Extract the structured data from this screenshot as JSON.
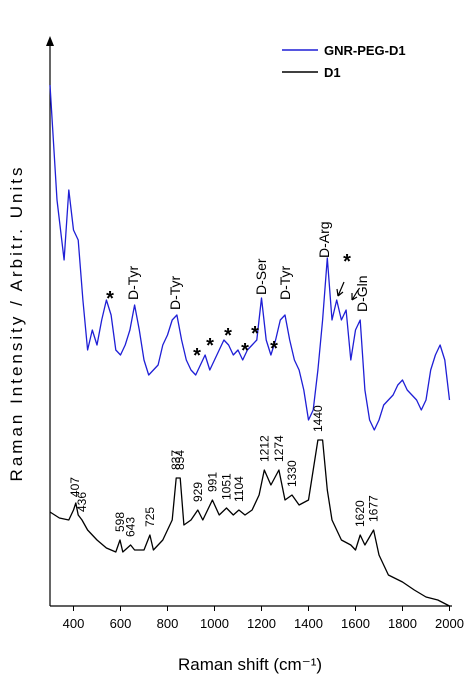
{
  "chart_data": {
    "type": "line",
    "xlabel": "Raman shift (cm⁻¹)",
    "ylabel": "Raman Intensity / Arbitr. Units",
    "xlim": [
      300,
      2000
    ],
    "ylim": [
      0,
      566
    ],
    "xticks": [
      400,
      600,
      800,
      1000,
      1200,
      1400,
      1600,
      1800,
      2000
    ],
    "series": [
      {
        "name": "GNR-PEG-D1",
        "color": "#1f1fd6",
        "x": [
          300,
          330,
          360,
          380,
          400,
          420,
          440,
          460,
          480,
          500,
          520,
          540,
          560,
          580,
          600,
          620,
          640,
          660,
          680,
          700,
          720,
          740,
          760,
          780,
          800,
          820,
          840,
          860,
          880,
          900,
          920,
          940,
          960,
          980,
          1000,
          1020,
          1040,
          1060,
          1080,
          1100,
          1120,
          1140,
          1160,
          1180,
          1200,
          1220,
          1240,
          1260,
          1280,
          1300,
          1320,
          1340,
          1360,
          1380,
          1400,
          1420,
          1440,
          1460,
          1480,
          1500,
          1520,
          1540,
          1560,
          1580,
          1600,
          1620,
          1640,
          1660,
          1680,
          1700,
          1720,
          1740,
          1760,
          1780,
          1800,
          1820,
          1840,
          1860,
          1880,
          1900,
          1920,
          1940,
          1960,
          1980,
          2000
        ],
        "values": [
          521,
          406,
          346,
          416,
          376,
          366,
          306,
          256,
          276,
          261,
          286,
          306,
          291,
          256,
          251,
          261,
          276,
          301,
          276,
          246,
          231,
          236,
          241,
          261,
          271,
          286,
          291,
          266,
          246,
          236,
          231,
          241,
          251,
          236,
          246,
          256,
          266,
          261,
          251,
          256,
          246,
          256,
          261,
          266,
          308,
          266,
          251,
          266,
          286,
          291,
          266,
          246,
          236,
          216,
          186,
          196,
          236,
          286,
          348,
          286,
          306,
          286,
          296,
          246,
          276,
          286,
          216,
          186,
          176,
          186,
          201,
          206,
          211,
          221,
          226,
          216,
          211,
          206,
          196,
          206,
          236,
          251,
          261,
          246,
          206
        ]
      },
      {
        "name": "D1",
        "color": "#000000",
        "x": [
          300,
          340,
          380,
          400,
          410,
          420,
          436,
          460,
          500,
          540,
          580,
          598,
          610,
          643,
          660,
          700,
          725,
          740,
          780,
          820,
          837,
          854,
          870,
          900,
          929,
          950,
          991,
          1020,
          1051,
          1080,
          1104,
          1130,
          1160,
          1190,
          1212,
          1240,
          1274,
          1300,
          1330,
          1360,
          1400,
          1420,
          1440,
          1460,
          1480,
          1500,
          1540,
          1580,
          1600,
          1620,
          1640,
          1677,
          1700,
          1740,
          1800,
          1850,
          1900,
          1950,
          2000
        ],
        "values": [
          94,
          88,
          86,
          96,
          103,
          91,
          86,
          76,
          66,
          58,
          54,
          66,
          54,
          61,
          56,
          56,
          71,
          56,
          66,
          86,
          128,
          128,
          81,
          86,
          96,
          86,
          106,
          91,
          98,
          91,
          96,
          91,
          96,
          111,
          136,
          121,
          136,
          106,
          111,
          101,
          106,
          136,
          166,
          166,
          116,
          86,
          66,
          61,
          56,
          71,
          61,
          76,
          51,
          31,
          24,
          16,
          9,
          6,
          0
        ]
      }
    ],
    "peak_labels": [
      407,
      436,
      598,
      643,
      725,
      837,
      854,
      929,
      991,
      1051,
      1104,
      1212,
      1274,
      1330,
      1440,
      1620,
      1677
    ],
    "annotations": [
      "*",
      "D-Tyr",
      "D-Tyr",
      "*",
      "*",
      "*",
      "*",
      "*",
      "D-Ser",
      "D-Tyr",
      "*",
      "D-Arg",
      "*",
      "D-Gln"
    ],
    "legend": "top-right"
  }
}
